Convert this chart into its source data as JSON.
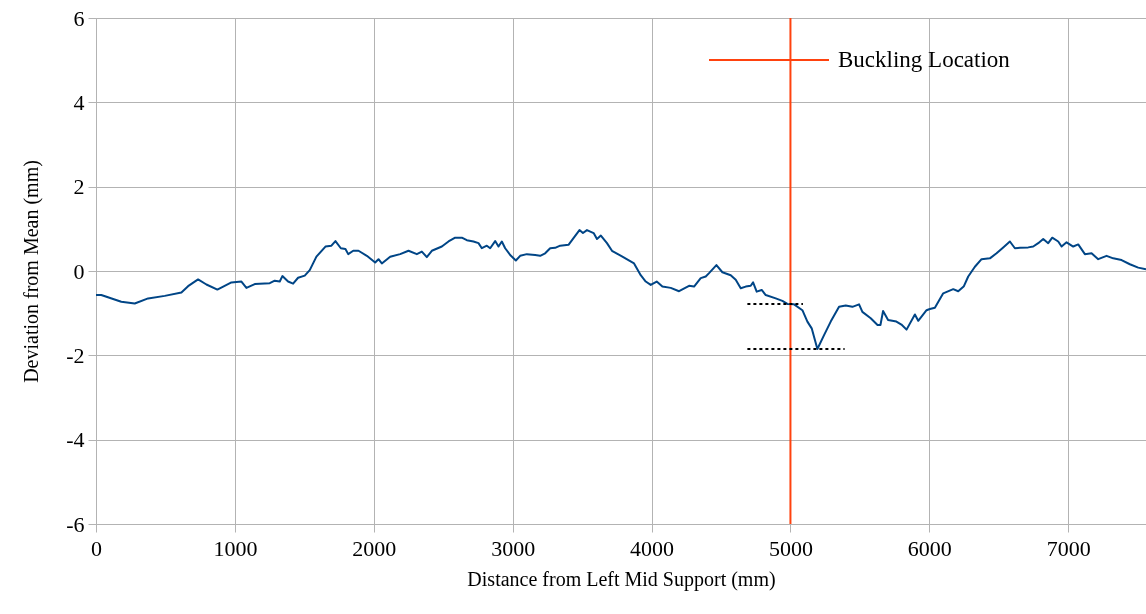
{
  "chart_data": {
    "type": "line",
    "xlabel": "Distance from Left Mid Support (mm)",
    "ylabel": "Deviation from Mean (mm)",
    "xlim": [
      0,
      7560
    ],
    "xticks": [
      0,
      1000,
      2000,
      3000,
      4000,
      5000,
      6000,
      7000
    ],
    "ylim": [
      -6,
      6
    ],
    "yticks": [
      -6,
      -4,
      -2,
      0,
      2,
      4,
      6
    ],
    "grid": true,
    "legend": "top right",
    "series": [
      {
        "color": "#004586",
        "x": [
          0,
          38,
          182,
          279,
          375,
          495,
          615,
          663,
          735,
          795,
          874,
          975,
          1047,
          1083,
          1143,
          1251,
          1287,
          1323,
          1342,
          1383,
          1419,
          1455,
          1503,
          1539,
          1587,
          1652,
          1695,
          1724,
          1763,
          1796,
          1816,
          1852,
          1890,
          1950,
          2010,
          2034,
          2058,
          2118,
          2190,
          2250,
          2310,
          2346,
          2382,
          2418,
          2490,
          2538,
          2586,
          2634,
          2670,
          2718,
          2754,
          2778,
          2814,
          2838,
          2874,
          2898,
          2922,
          2946,
          2982,
          3023,
          3054,
          3102,
          3162,
          3198,
          3234,
          3270,
          3306,
          3342,
          3402,
          3438,
          3481,
          3506,
          3535,
          3583,
          3607,
          3635,
          3679,
          3715,
          3790,
          3874,
          3922,
          3958,
          3994,
          4037,
          4078,
          4138,
          4198,
          4270,
          4306,
          4354,
          4390,
          4414,
          4467,
          4510,
          4570,
          4606,
          4642,
          4678,
          4714,
          4731,
          4757,
          4793,
          4822,
          4894,
          4942,
          4978,
          5026,
          5086,
          5122,
          5153,
          5194,
          5242,
          5290,
          5350,
          5398,
          5446,
          5494,
          5518,
          5578,
          5627,
          5648,
          5667,
          5703,
          5763,
          5799,
          5836,
          5896,
          5920,
          5980,
          6004,
          6040,
          6100,
          6172,
          6208,
          6249,
          6280,
          6328,
          6376,
          6436,
          6484,
          6532,
          6580,
          6616,
          6652,
          6712,
          6748,
          6784,
          6820,
          6856,
          6885,
          6928,
          6952,
          6988,
          7036,
          7072,
          7120,
          7168,
          7216,
          7276,
          7324,
          7384,
          7444,
          7504,
          7560
        ],
        "values": [
          -0.57,
          -0.57,
          -0.73,
          -0.77,
          -0.65,
          -0.59,
          -0.51,
          -0.36,
          -0.2,
          -0.32,
          -0.44,
          -0.27,
          -0.25,
          -0.4,
          -0.31,
          -0.29,
          -0.23,
          -0.25,
          -0.12,
          -0.25,
          -0.3,
          -0.16,
          -0.11,
          0.02,
          0.34,
          0.58,
          0.6,
          0.71,
          0.54,
          0.52,
          0.4,
          0.48,
          0.48,
          0.36,
          0.2,
          0.28,
          0.18,
          0.34,
          0.4,
          0.48,
          0.4,
          0.46,
          0.33,
          0.48,
          0.58,
          0.7,
          0.79,
          0.79,
          0.73,
          0.7,
          0.66,
          0.54,
          0.6,
          0.54,
          0.71,
          0.58,
          0.7,
          0.54,
          0.38,
          0.25,
          0.36,
          0.4,
          0.38,
          0.36,
          0.42,
          0.54,
          0.55,
          0.6,
          0.62,
          0.78,
          0.97,
          0.9,
          0.97,
          0.9,
          0.76,
          0.84,
          0.66,
          0.48,
          0.34,
          0.18,
          -0.1,
          -0.25,
          -0.33,
          -0.25,
          -0.37,
          -0.4,
          -0.48,
          -0.35,
          -0.37,
          -0.17,
          -0.13,
          -0.05,
          0.14,
          -0.03,
          -0.1,
          -0.21,
          -0.41,
          -0.37,
          -0.35,
          -0.27,
          -0.49,
          -0.45,
          -0.57,
          -0.65,
          -0.71,
          -0.78,
          -0.79,
          -0.93,
          -1.2,
          -1.36,
          -1.85,
          -1.52,
          -1.2,
          -0.85,
          -0.82,
          -0.85,
          -0.79,
          -0.97,
          -1.12,
          -1.28,
          -1.28,
          -0.95,
          -1.16,
          -1.2,
          -1.27,
          -1.39,
          -1.03,
          -1.18,
          -0.93,
          -0.9,
          -0.87,
          -0.53,
          -0.43,
          -0.48,
          -0.36,
          -0.13,
          0.1,
          0.28,
          0.3,
          0.42,
          0.56,
          0.7,
          0.54,
          0.55,
          0.56,
          0.58,
          0.66,
          0.76,
          0.66,
          0.79,
          0.7,
          0.58,
          0.68,
          0.58,
          0.63,
          0.4,
          0.42,
          0.28,
          0.36,
          0.3,
          0.26,
          0.16,
          0.08,
          0.04
        ]
      },
      {
        "name": "Buckling Location",
        "color": "#ff420e",
        "x": [
          5000,
          5000
        ],
        "values": [
          -6,
          6
        ]
      },
      {
        "color": "#000000",
        "line_style": "dotted",
        "x": [
          4690,
          5090
        ],
        "values": [
          -0.78,
          -0.78
        ]
      },
      {
        "color": "#000000",
        "line_style": "dotted",
        "x": [
          4690,
          5390
        ],
        "values": [
          -1.85,
          -1.85
        ]
      }
    ]
  }
}
